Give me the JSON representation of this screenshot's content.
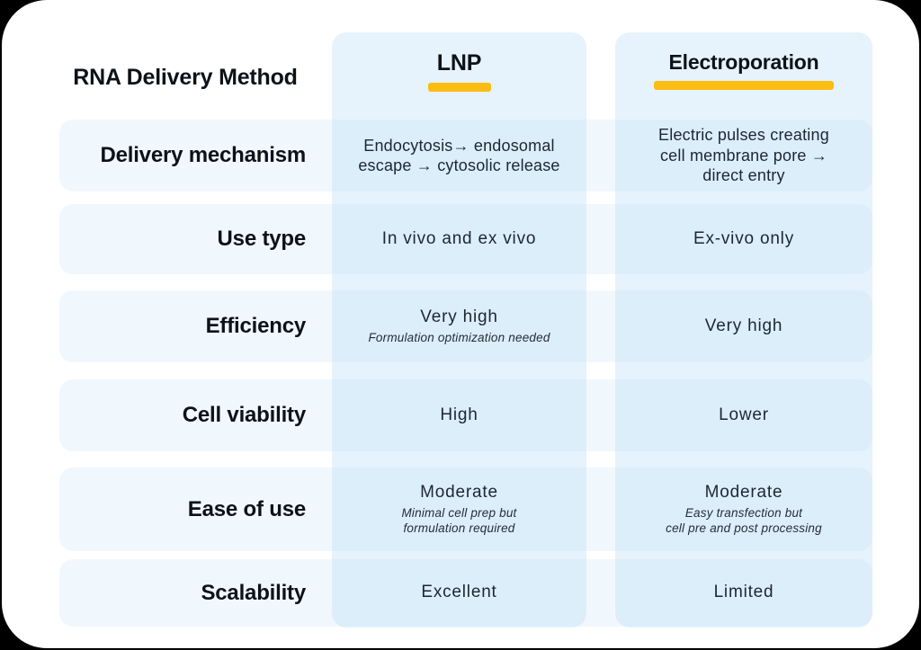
{
  "chart_data": {
    "type": "table",
    "title": "RNA Delivery Method",
    "accent_color": "#fbbd13",
    "columns": [
      "LNP",
      "Electroporation"
    ],
    "rows": [
      {
        "label": "Delivery mechanism",
        "cells": [
          {
            "main": "Endocytosis→ endosomal\nescape → cytosolic release",
            "sub": ""
          },
          {
            "main": "Electric pulses creating\ncell membrane pore →\ndirect entry",
            "sub": ""
          }
        ]
      },
      {
        "label": "Use type",
        "cells": [
          {
            "main": "In vivo and ex vivo",
            "sub": ""
          },
          {
            "main": "Ex-vivo only",
            "sub": ""
          }
        ]
      },
      {
        "label": "Efficiency",
        "cells": [
          {
            "main": "Very high",
            "sub": "Formulation optimization needed"
          },
          {
            "main": "Very high",
            "sub": ""
          }
        ]
      },
      {
        "label": "Cell viability",
        "cells": [
          {
            "main": "High",
            "sub": ""
          },
          {
            "main": "Lower",
            "sub": ""
          }
        ]
      },
      {
        "label": "Ease of use",
        "cells": [
          {
            "main": "Moderate",
            "sub": "Minimal cell prep but\nformulation required"
          },
          {
            "main": "Moderate",
            "sub": "Easy transfection but\ncell pre and post processing"
          }
        ]
      },
      {
        "label": "Scalability",
        "cells": [
          {
            "main": "Excellent",
            "sub": ""
          },
          {
            "main": "Limited",
            "sub": ""
          }
        ]
      }
    ]
  }
}
